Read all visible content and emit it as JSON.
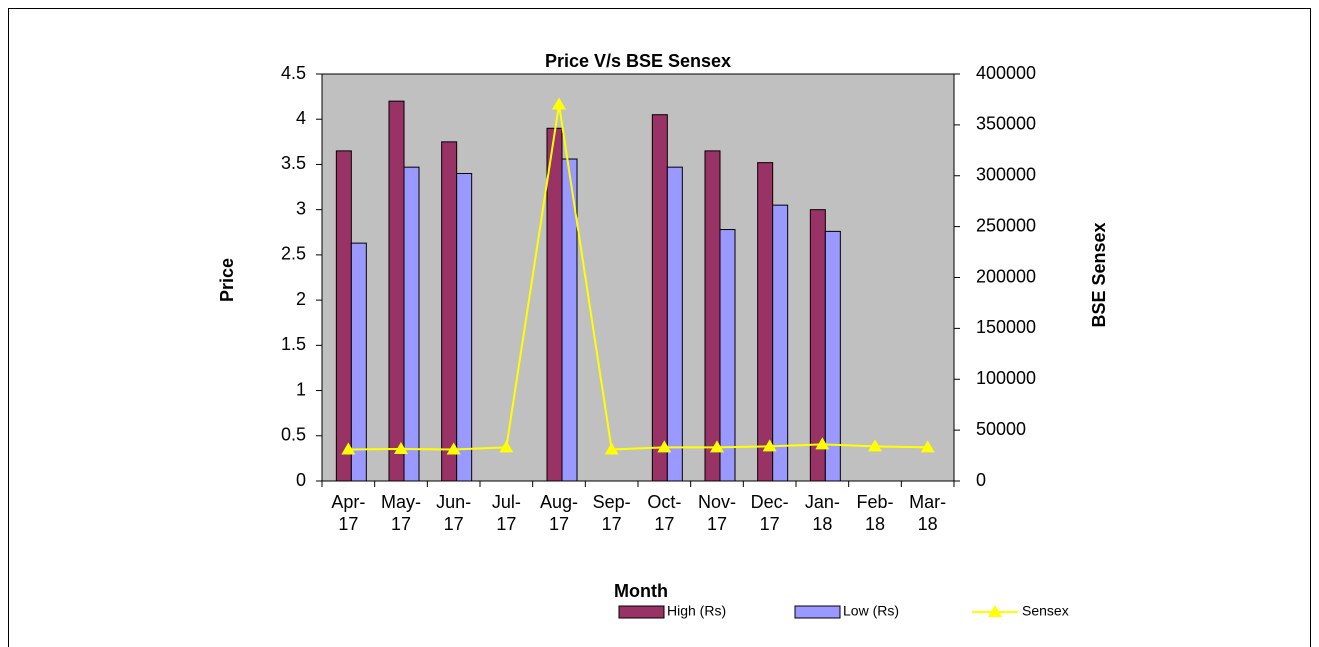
{
  "chart_data": {
    "type": "bar",
    "title": "Price V/s BSE Sensex",
    "x_label": "Month",
    "y_label": "Price",
    "y2_label": "BSE Sensex",
    "categories": [
      "Apr-17",
      "May-17",
      "Jun-17",
      "Jul-17",
      "Aug-17",
      "Sep-17",
      "Oct-17",
      "Nov-17",
      "Dec-17",
      "Jan-18",
      "Feb-18",
      "Mar-18"
    ],
    "series": [
      {
        "name": "High (Rs)",
        "type": "bar",
        "color": "#993366",
        "values": [
          3.65,
          4.2,
          3.75,
          null,
          3.9,
          null,
          4.05,
          3.65,
          3.52,
          3.0,
          null,
          null
        ]
      },
      {
        "name": "Low (Rs)",
        "type": "bar",
        "color": "#9999ff",
        "values": [
          2.63,
          3.47,
          3.4,
          null,
          3.56,
          null,
          3.47,
          2.78,
          3.05,
          2.76,
          null,
          null
        ]
      },
      {
        "name": "Sensex",
        "type": "line",
        "axis": "y2",
        "color": "#ffff00",
        "values": [
          31000,
          31500,
          31000,
          33000,
          370000,
          31000,
          33000,
          33000,
          34000,
          36000,
          34000,
          33000
        ]
      }
    ],
    "ylim": [
      0,
      4.5
    ],
    "yticks": [
      0,
      0.5,
      1,
      1.5,
      2,
      2.5,
      3,
      3.5,
      4,
      4.5
    ],
    "y2lim": [
      0,
      400000
    ],
    "y2ticks": [
      0,
      50000,
      100000,
      150000,
      200000,
      250000,
      300000,
      350000,
      400000
    ],
    "plot_background": "#c0c0c0",
    "legend": "bottom"
  }
}
